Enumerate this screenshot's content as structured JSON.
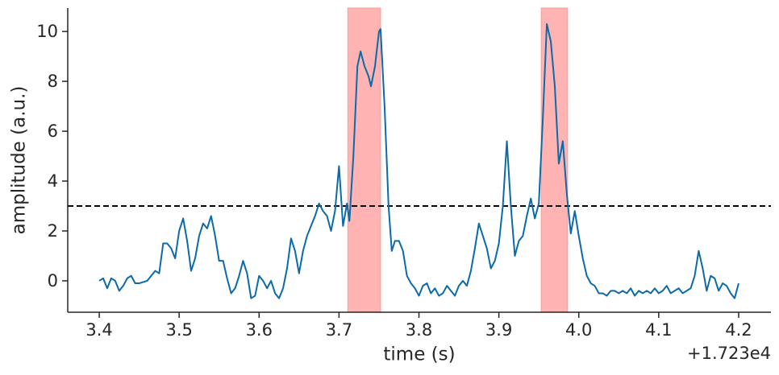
{
  "chart_data": {
    "type": "line",
    "xlabel": "time (s)",
    "ylabel": "amplitude (a.u.)",
    "offset_text": "+1.723e4",
    "xlim": [
      3.3606,
      4.2404
    ],
    "ylim": [
      -1.26,
      10.94
    ],
    "xticks": [
      3.4,
      3.5,
      3.6,
      3.7,
      3.8,
      3.9,
      {
        "value": 4,
        "label": "4.0"
      },
      4.1,
      4.2
    ],
    "yticks": [
      0,
      2,
      4,
      6,
      8,
      10
    ],
    "hline": 3,
    "hline_color": "#000000",
    "spans": [
      [
        3.711,
        3.752
      ],
      [
        3.953,
        3.986
      ]
    ],
    "span_color": "#ff9a9a",
    "x": [
      3.4,
      3.405,
      3.41,
      3.415,
      3.42,
      3.425,
      3.43,
      3.435,
      3.44,
      3.445,
      3.45,
      3.46,
      3.465,
      3.47,
      3.475,
      3.48,
      3.485,
      3.49,
      3.495,
      3.5,
      3.505,
      3.51,
      3.515,
      3.52,
      3.525,
      3.53,
      3.535,
      3.54,
      3.545,
      3.55,
      3.555,
      3.56,
      3.565,
      3.57,
      3.575,
      3.58,
      3.585,
      3.59,
      3.595,
      3.6,
      3.605,
      3.61,
      3.615,
      3.62,
      3.625,
      3.63,
      3.635,
      3.64,
      3.645,
      3.65,
      3.655,
      3.66,
      3.665,
      3.67,
      3.675,
      3.68,
      3.685,
      3.69,
      3.695,
      3.7,
      3.705,
      3.71,
      3.713,
      3.718,
      3.723,
      3.727,
      3.732,
      3.737,
      3.74,
      3.745,
      3.75,
      3.752,
      3.757,
      3.762,
      3.766,
      3.77,
      3.775,
      3.78,
      3.785,
      3.79,
      3.795,
      3.8,
      3.805,
      3.81,
      3.815,
      3.82,
      3.825,
      3.83,
      3.835,
      3.84,
      3.845,
      3.85,
      3.855,
      3.86,
      3.865,
      3.87,
      3.875,
      3.88,
      3.885,
      3.89,
      3.895,
      3.9,
      3.905,
      3.91,
      3.915,
      3.92,
      3.925,
      3.93,
      3.935,
      3.94,
      3.945,
      3.95,
      3.955,
      3.96,
      3.965,
      3.97,
      3.975,
      3.98,
      3.985,
      3.99,
      3.995,
      4.0,
      4.005,
      4.01,
      4.015,
      4.02,
      4.025,
      4.03,
      4.035,
      4.04,
      4.045,
      4.05,
      4.055,
      4.06,
      4.065,
      4.07,
      4.075,
      4.08,
      4.085,
      4.09,
      4.095,
      4.1,
      4.105,
      4.11,
      4.115,
      4.12,
      4.125,
      4.13,
      4.135,
      4.14,
      4.145,
      4.15,
      4.155,
      4.16,
      4.165,
      4.17,
      4.175,
      4.18,
      4.185,
      4.19,
      4.195,
      4.2
    ],
    "series": [
      {
        "color": "#0b6aa8",
        "values": [
          0.0,
          0.1,
          -0.3,
          0.1,
          0.0,
          -0.4,
          -0.2,
          0.1,
          0.2,
          -0.1,
          -0.1,
          0.0,
          0.2,
          0.4,
          0.3,
          1.5,
          1.5,
          1.3,
          0.9,
          2.0,
          2.5,
          1.6,
          0.4,
          0.9,
          1.8,
          2.3,
          2.1,
          2.6,
          1.8,
          0.8,
          0.8,
          0.1,
          -0.5,
          -0.3,
          0.2,
          0.8,
          0.3,
          -0.7,
          -0.6,
          0.2,
          0.0,
          -0.3,
          0.0,
          -0.5,
          -0.7,
          -0.3,
          0.5,
          1.7,
          1.2,
          0.3,
          1.2,
          1.8,
          2.2,
          2.6,
          3.1,
          2.8,
          2.6,
          2.0,
          2.8,
          4.6,
          2.2,
          3.1,
          2.4,
          5.0,
          8.6,
          9.2,
          8.6,
          8.2,
          7.8,
          8.6,
          10.0,
          10.1,
          7.0,
          3.0,
          1.2,
          1.6,
          1.6,
          1.2,
          0.2,
          -0.1,
          -0.3,
          -0.6,
          -0.2,
          -0.1,
          -0.5,
          -0.3,
          -0.6,
          -0.5,
          -0.2,
          -0.4,
          -0.6,
          -0.2,
          0.0,
          -0.2,
          0.4,
          1.3,
          2.3,
          1.8,
          1.3,
          0.5,
          0.8,
          1.5,
          3.0,
          5.6,
          3.0,
          1.0,
          1.6,
          1.8,
          2.6,
          3.3,
          2.5,
          3.1,
          6.5,
          10.3,
          9.6,
          7.8,
          4.7,
          5.6,
          3.5,
          1.9,
          2.8,
          1.8,
          0.9,
          0.2,
          -0.1,
          -0.2,
          -0.5,
          -0.5,
          -0.6,
          -0.4,
          -0.4,
          -0.5,
          -0.4,
          -0.5,
          -0.3,
          -0.6,
          -0.4,
          -0.5,
          -0.4,
          -0.5,
          -0.3,
          -0.5,
          -0.4,
          -0.2,
          -0.5,
          -0.4,
          -0.3,
          -0.5,
          -0.4,
          -0.3,
          0.2,
          1.2,
          0.5,
          -0.4,
          0.2,
          0.1,
          -0.4,
          -0.1,
          -0.2,
          -0.5,
          -0.7,
          -0.1
        ]
      }
    ]
  }
}
